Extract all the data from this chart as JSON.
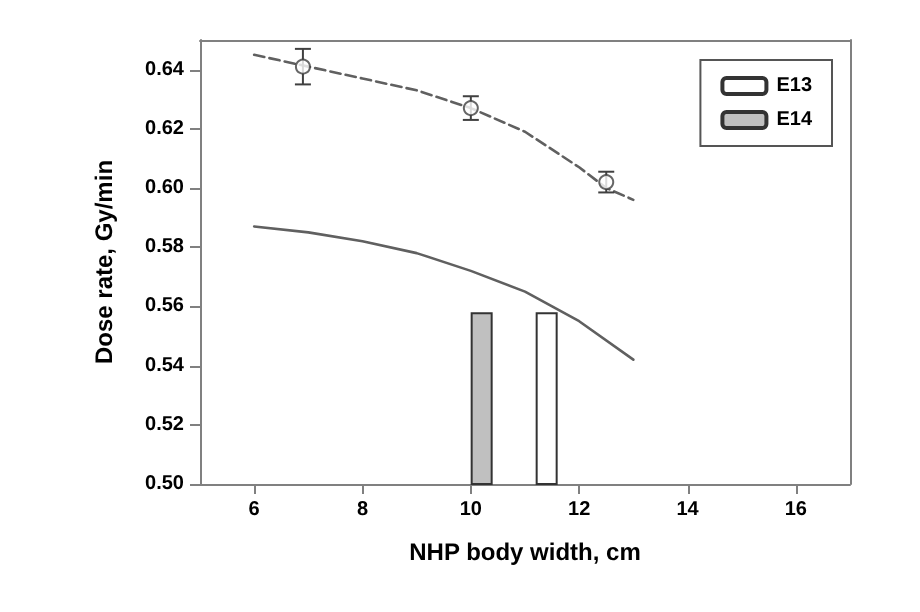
{
  "chart_data": {
    "type": "scatter",
    "xlabel": "NHP body width, cm",
    "ylabel": "Dose rate, Gy/min",
    "xlim": [
      5,
      17
    ],
    "xticks": [
      6,
      8,
      10,
      12,
      14,
      16
    ],
    "ylim": [
      0.5,
      0.65
    ],
    "yticks": [
      {
        "value": 0.5,
        "label": "0.50"
      },
      0.52,
      0.54,
      0.56,
      0.58,
      {
        "value": 0.6,
        "label": "0.60"
      },
      0.62,
      0.64
    ],
    "grid": false,
    "legend": "top right",
    "series": [
      {
        "type": "bar",
        "name": "E13",
        "color": "#ffffff",
        "x": [
          11.4
        ],
        "values": [
          0.558
        ]
      },
      {
        "type": "bar",
        "name": "E14",
        "color": "#c0c0c0",
        "x": [
          10.2
        ],
        "values": [
          0.558
        ]
      },
      {
        "type": "line",
        "color": "#606060",
        "line_style": "dashed",
        "marker": "none",
        "x": [
          6,
          7,
          8,
          9,
          10,
          11,
          12,
          12.5,
          13
        ],
        "values": [
          0.645,
          0.641,
          0.637,
          0.633,
          0.627,
          0.619,
          0.607,
          0.6,
          0.596
        ]
      },
      {
        "type": "line",
        "color": "#606060",
        "line_style": "solid",
        "marker": "none",
        "x": [
          6,
          7,
          8,
          9,
          10,
          11,
          11.5,
          12,
          13
        ],
        "values": [
          0.587,
          0.585,
          0.582,
          0.578,
          0.572,
          0.565,
          0.56,
          0.555,
          0.542
        ]
      },
      {
        "color": "#404040",
        "marker": "circle",
        "x": [
          6.9,
          10,
          12.5
        ],
        "values": [
          0.641,
          0.627,
          0.602
        ],
        "errors": [
          0.006,
          0.004,
          0.0035
        ]
      }
    ]
  }
}
